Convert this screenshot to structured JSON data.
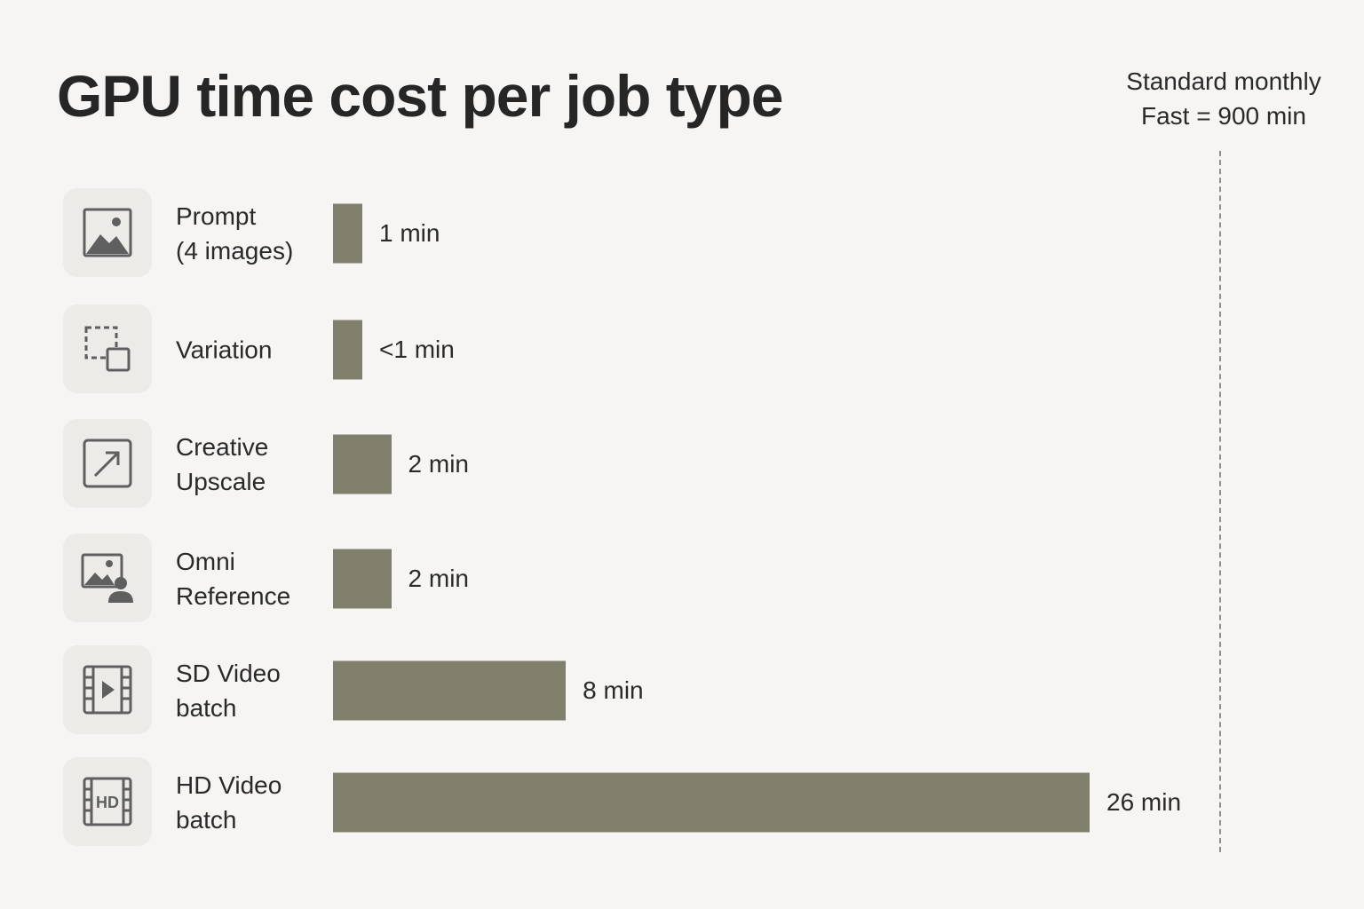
{
  "chart_data": {
    "type": "bar",
    "orientation": "horizontal",
    "title": "GPU time cost per job type",
    "categories": [
      "Prompt\n(4 images)",
      "Variation",
      "Creative\nUpscale",
      "Omni\nReference",
      "SD Video\nbatch",
      "HD Video\nbatch"
    ],
    "values": [
      1,
      0.3,
      2,
      2,
      8,
      26
    ],
    "value_labels": [
      "1 min",
      "<1 min",
      "2 min",
      "2 min",
      "8 min",
      "26 min"
    ],
    "xlim": [
      0,
      31
    ],
    "reference_line": {
      "label_line1": "Standard monthly",
      "label_line2": "Fast = 900 min"
    },
    "colors": {
      "bar": "#7f7f6b",
      "background": "#f6f5f3",
      "icon_bg": "#ecebe8",
      "icon_stroke": "#5f5f5f"
    }
  },
  "icons": [
    "image-icon",
    "variation-icon",
    "upscale-arrow-icon",
    "omni-reference-icon",
    "video-icon",
    "hd-video-icon"
  ]
}
